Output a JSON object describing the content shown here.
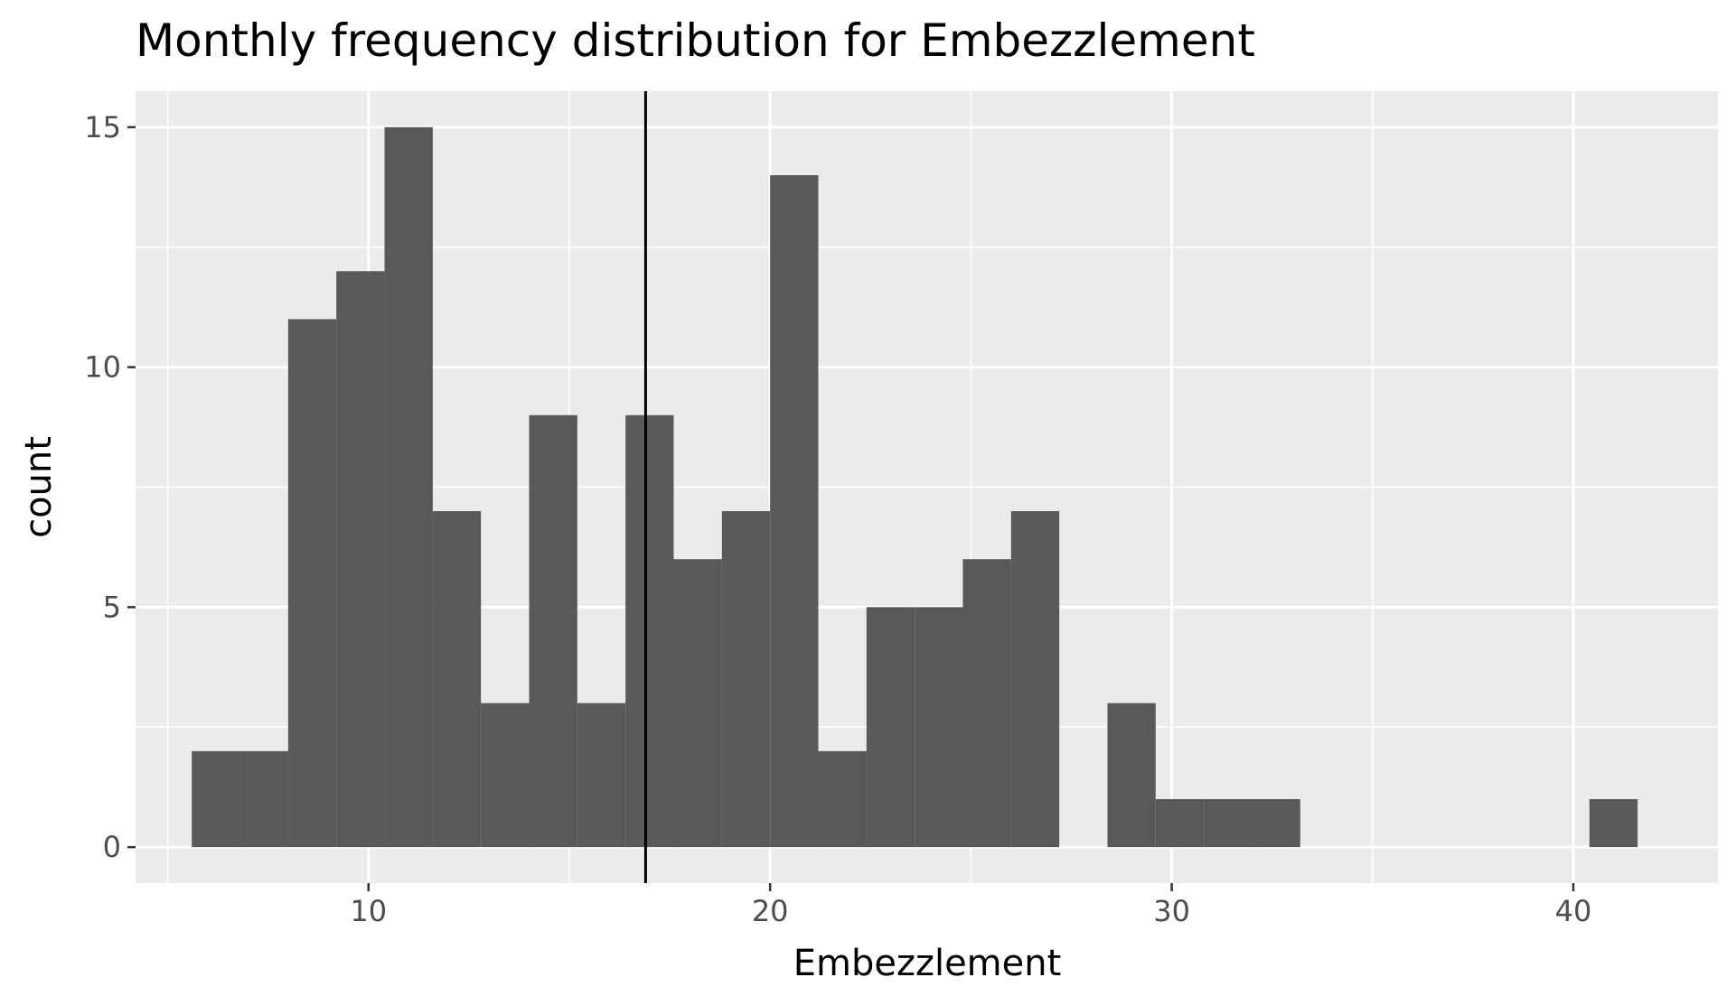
{
  "chart_data": {
    "type": "bar",
    "subtype": "histogram",
    "title": "Monthly frequency distribution for Embezzlement",
    "xlabel": "Embezzlement",
    "ylabel": "count",
    "xlim": [
      4.2,
      43.6
    ],
    "ylim": [
      -0.75,
      15.75
    ],
    "x_ticks": [
      10,
      20,
      30,
      40
    ],
    "y_ticks": [
      0,
      5,
      10,
      15
    ],
    "bin_width": 1.2,
    "bins": [
      {
        "start": 5.6,
        "end": 6.8,
        "count": 2
      },
      {
        "start": 6.8,
        "end": 8.0,
        "count": 2
      },
      {
        "start": 8.0,
        "end": 9.2,
        "count": 11
      },
      {
        "start": 9.2,
        "end": 10.4,
        "count": 12
      },
      {
        "start": 10.4,
        "end": 11.6,
        "count": 15
      },
      {
        "start": 11.6,
        "end": 12.8,
        "count": 7
      },
      {
        "start": 12.8,
        "end": 14.0,
        "count": 3
      },
      {
        "start": 14.0,
        "end": 15.2,
        "count": 9
      },
      {
        "start": 15.2,
        "end": 16.4,
        "count": 3
      },
      {
        "start": 16.4,
        "end": 17.6,
        "count": 9
      },
      {
        "start": 17.6,
        "end": 18.8,
        "count": 6
      },
      {
        "start": 18.8,
        "end": 20.0,
        "count": 7
      },
      {
        "start": 20.0,
        "end": 21.2,
        "count": 14
      },
      {
        "start": 21.2,
        "end": 22.4,
        "count": 2
      },
      {
        "start": 22.4,
        "end": 23.6,
        "count": 5
      },
      {
        "start": 23.6,
        "end": 24.8,
        "count": 5
      },
      {
        "start": 24.8,
        "end": 26.0,
        "count": 6
      },
      {
        "start": 26.0,
        "end": 27.2,
        "count": 7
      },
      {
        "start": 27.2,
        "end": 28.4,
        "count": 0
      },
      {
        "start": 28.4,
        "end": 29.6,
        "count": 3
      },
      {
        "start": 29.6,
        "end": 30.8,
        "count": 1
      },
      {
        "start": 30.8,
        "end": 32.0,
        "count": 1
      },
      {
        "start": 32.0,
        "end": 33.2,
        "count": 1
      },
      {
        "start": 40.4,
        "end": 41.6,
        "count": 1
      }
    ],
    "mean_line_x": 16.9,
    "colors": {
      "bar": "#595959",
      "panel": "#ebebeb",
      "grid": "#ffffff",
      "reference_line": "#000000"
    },
    "grid": true,
    "legend": "none"
  }
}
